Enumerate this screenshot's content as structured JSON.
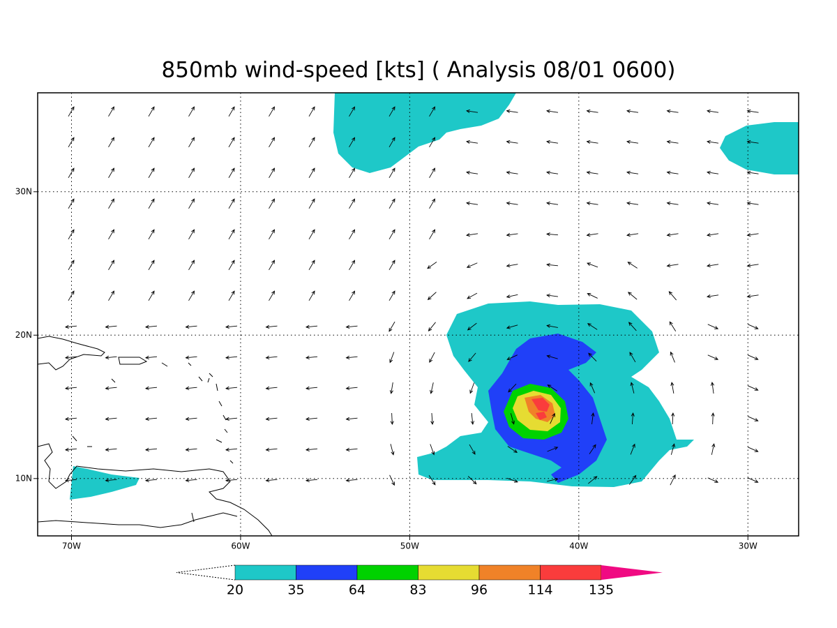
{
  "map": {
    "title": "850mb wind-speed [kts] (  Analysis  08/01 0600)",
    "lonlim": [
      -72,
      -27
    ],
    "latlim": [
      6,
      36.9
    ],
    "lon_ticks": [
      {
        "value": -70,
        "label": "70W"
      },
      {
        "value": -60,
        "label": "60W"
      },
      {
        "value": -50,
        "label": "50W"
      },
      {
        "value": -40,
        "label": "40W"
      },
      {
        "value": -30,
        "label": "30W"
      }
    ],
    "lat_ticks": [
      {
        "value": 30,
        "label": "30N"
      },
      {
        "value": 20,
        "label": "20N"
      },
      {
        "value": 10,
        "label": "10N"
      }
    ],
    "colorbar": {
      "levels": [
        20,
        35,
        64,
        83,
        96,
        114,
        135
      ],
      "colors": [
        "#1ec8c8",
        "#2040f8",
        "#00d200",
        "#e6dc32",
        "#f08228",
        "#fa3c3c",
        "#f00a82"
      ]
    }
  }
}
